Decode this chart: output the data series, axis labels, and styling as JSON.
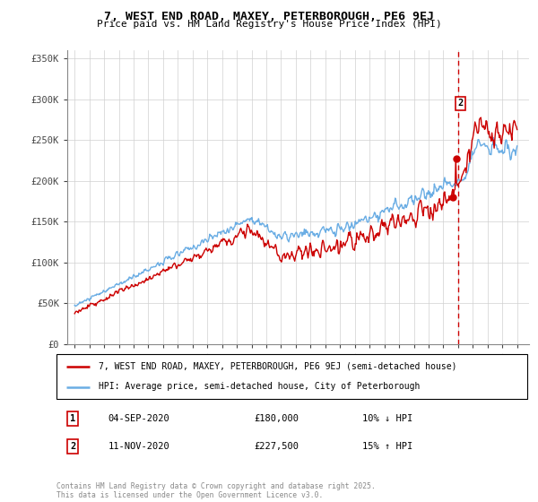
{
  "title": "7, WEST END ROAD, MAXEY, PETERBOROUGH, PE6 9EJ",
  "subtitle": "Price paid vs. HM Land Registry's House Price Index (HPI)",
  "hpi_color": "#6aade4",
  "price_color": "#cc0000",
  "dashed_color": "#cc0000",
  "ylim": [
    0,
    360000
  ],
  "yticks": [
    0,
    50000,
    100000,
    150000,
    200000,
    250000,
    300000,
    350000
  ],
  "ytick_labels": [
    "£0",
    "£50K",
    "£100K",
    "£150K",
    "£200K",
    "£250K",
    "£300K",
    "£350K"
  ],
  "legend_label_red": "7, WEST END ROAD, MAXEY, PETERBOROUGH, PE6 9EJ (semi-detached house)",
  "legend_label_blue": "HPI: Average price, semi-detached house, City of Peterborough",
  "sale1_date": "04-SEP-2020",
  "sale1_price": "£180,000",
  "sale1_pct": "10% ↓ HPI",
  "sale2_date": "11-NOV-2020",
  "sale2_price": "£227,500",
  "sale2_pct": "15% ↑ HPI",
  "footnote": "Contains HM Land Registry data © Crown copyright and database right 2025.\nThis data is licensed under the Open Government Licence v3.0.",
  "sale1_year": 2020.67,
  "sale2_year": 2020.86,
  "sale1_val": 180000,
  "sale2_val": 227500,
  "vline_x": 2021.0
}
